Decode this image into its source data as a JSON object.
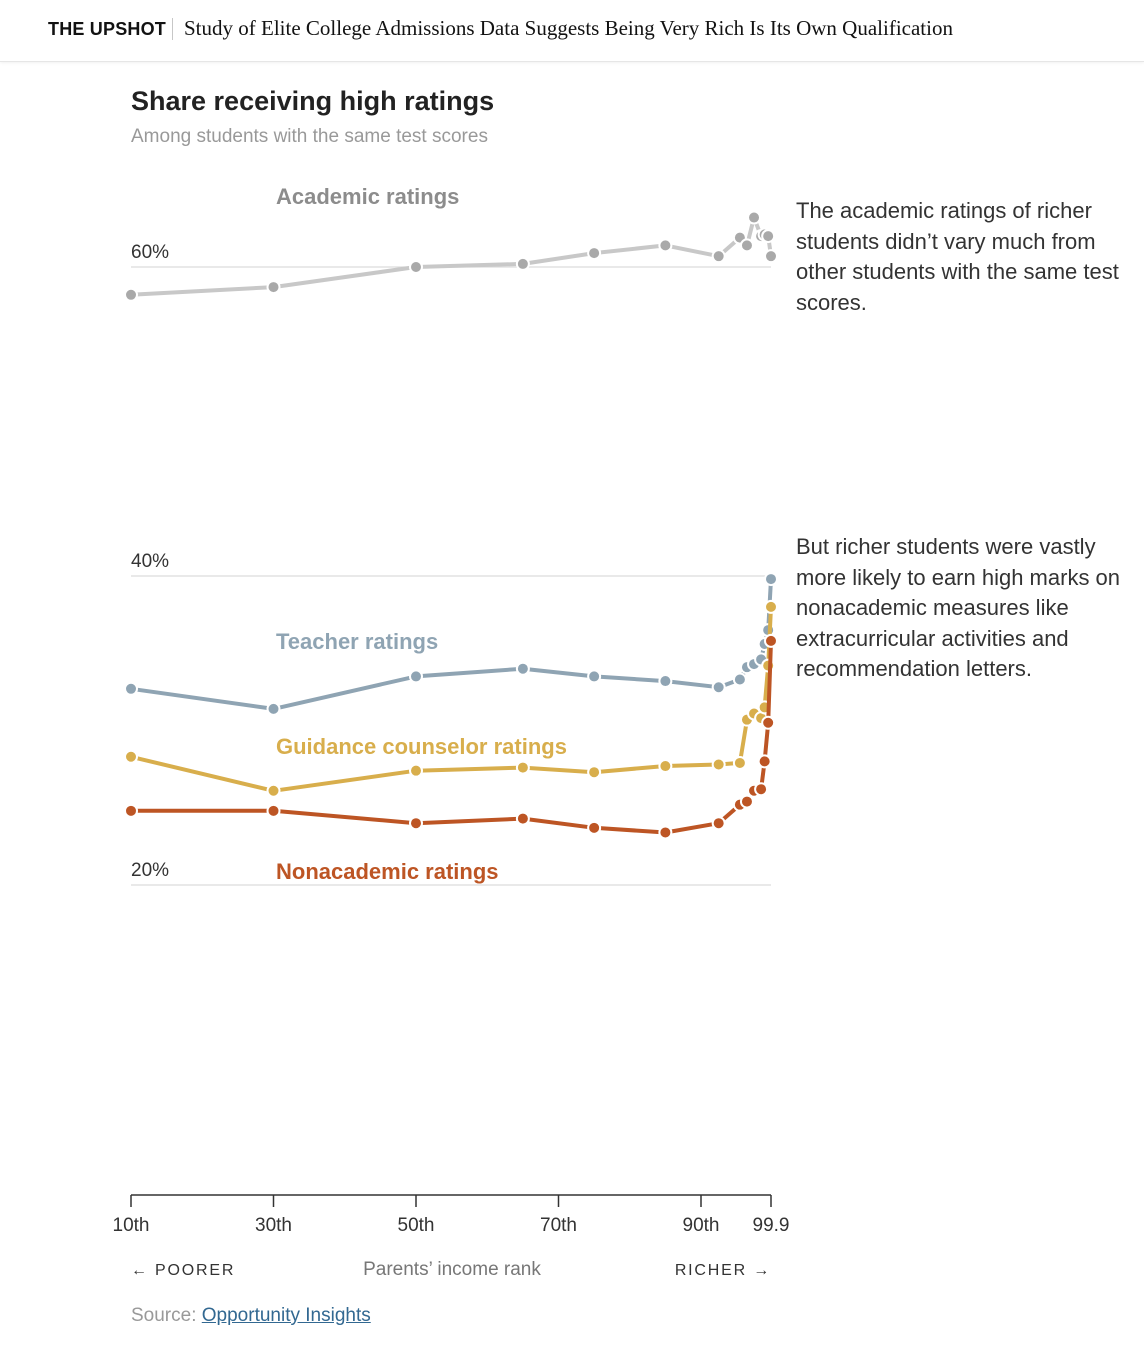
{
  "header": {
    "section": "THE UPSHOT",
    "headline": "Study of Elite College Admissions Data Suggests Being Very Rich Is Its Own Qualification"
  },
  "annotations": [
    "The academic ratings of richer students didn’t vary much from other students with the same test scores.",
    "But richer students were vastly more likely to earn high marks on nonacademic measures like extracurricular activities and recommendation letters."
  ],
  "source": {
    "prefix": "Source: ",
    "link_text": "Opportunity Insights"
  },
  "chart_data": {
    "type": "line",
    "title": "Share receiving high ratings",
    "subtitle": "Among students with the same test scores",
    "xlabel": "Parents’ income rank",
    "x_direction_left": "← POORER",
    "x_direction_right": "RICHER →",
    "xlim": [
      10,
      99.9
    ],
    "ylim": [
      20,
      65
    ],
    "x_ticks": [
      {
        "value": 10,
        "label": "10th"
      },
      {
        "value": 30,
        "label": "30th"
      },
      {
        "value": 50,
        "label": "50th"
      },
      {
        "value": 70,
        "label": "70th"
      },
      {
        "value": 90,
        "label": "90th"
      },
      {
        "value": 99.9,
        "label": "99.9"
      }
    ],
    "y_gridlines": [
      {
        "value": 60,
        "label": "60%"
      },
      {
        "value": 40,
        "label": "40%"
      },
      {
        "value": 20,
        "label": "20%"
      }
    ],
    "x": [
      10,
      30,
      50,
      65,
      75,
      85,
      92.5,
      95.5,
      96.5,
      97.5,
      98.5,
      99,
      99.5,
      99.9
    ],
    "series": [
      {
        "name": "Academic ratings",
        "color": "#c8c8c8",
        "dot_color": "#a9a9a9",
        "values": [
          58.2,
          58.7,
          60.0,
          60.2,
          60.9,
          61.4,
          60.7,
          61.9,
          61.4,
          63.2,
          62.0,
          62.1,
          62.0,
          60.7
        ]
      },
      {
        "name": "Teacher ratings",
        "color": "#8fa4b3",
        "dot_color": "#8fa4b3",
        "values": [
          32.7,
          31.4,
          33.5,
          34.0,
          33.5,
          33.2,
          32.8,
          33.3,
          34.1,
          34.3,
          34.6,
          35.6,
          36.5,
          39.8
        ]
      },
      {
        "name": "Guidance counselor ratings",
        "color": "#d8ae4c",
        "dot_color": "#d8ae4c",
        "values": [
          28.3,
          26.1,
          27.4,
          27.6,
          27.3,
          27.7,
          27.8,
          27.9,
          30.7,
          31.1,
          30.8,
          31.5,
          34.2,
          38.0
        ]
      },
      {
        "name": "Nonacademic ratings",
        "color": "#bd5524",
        "dot_color": "#bd5524",
        "values": [
          24.8,
          24.8,
          24.0,
          24.3,
          23.7,
          23.4,
          24.0,
          25.2,
          25.4,
          26.1,
          26.2,
          28.0,
          30.5,
          35.8
        ]
      }
    ]
  }
}
